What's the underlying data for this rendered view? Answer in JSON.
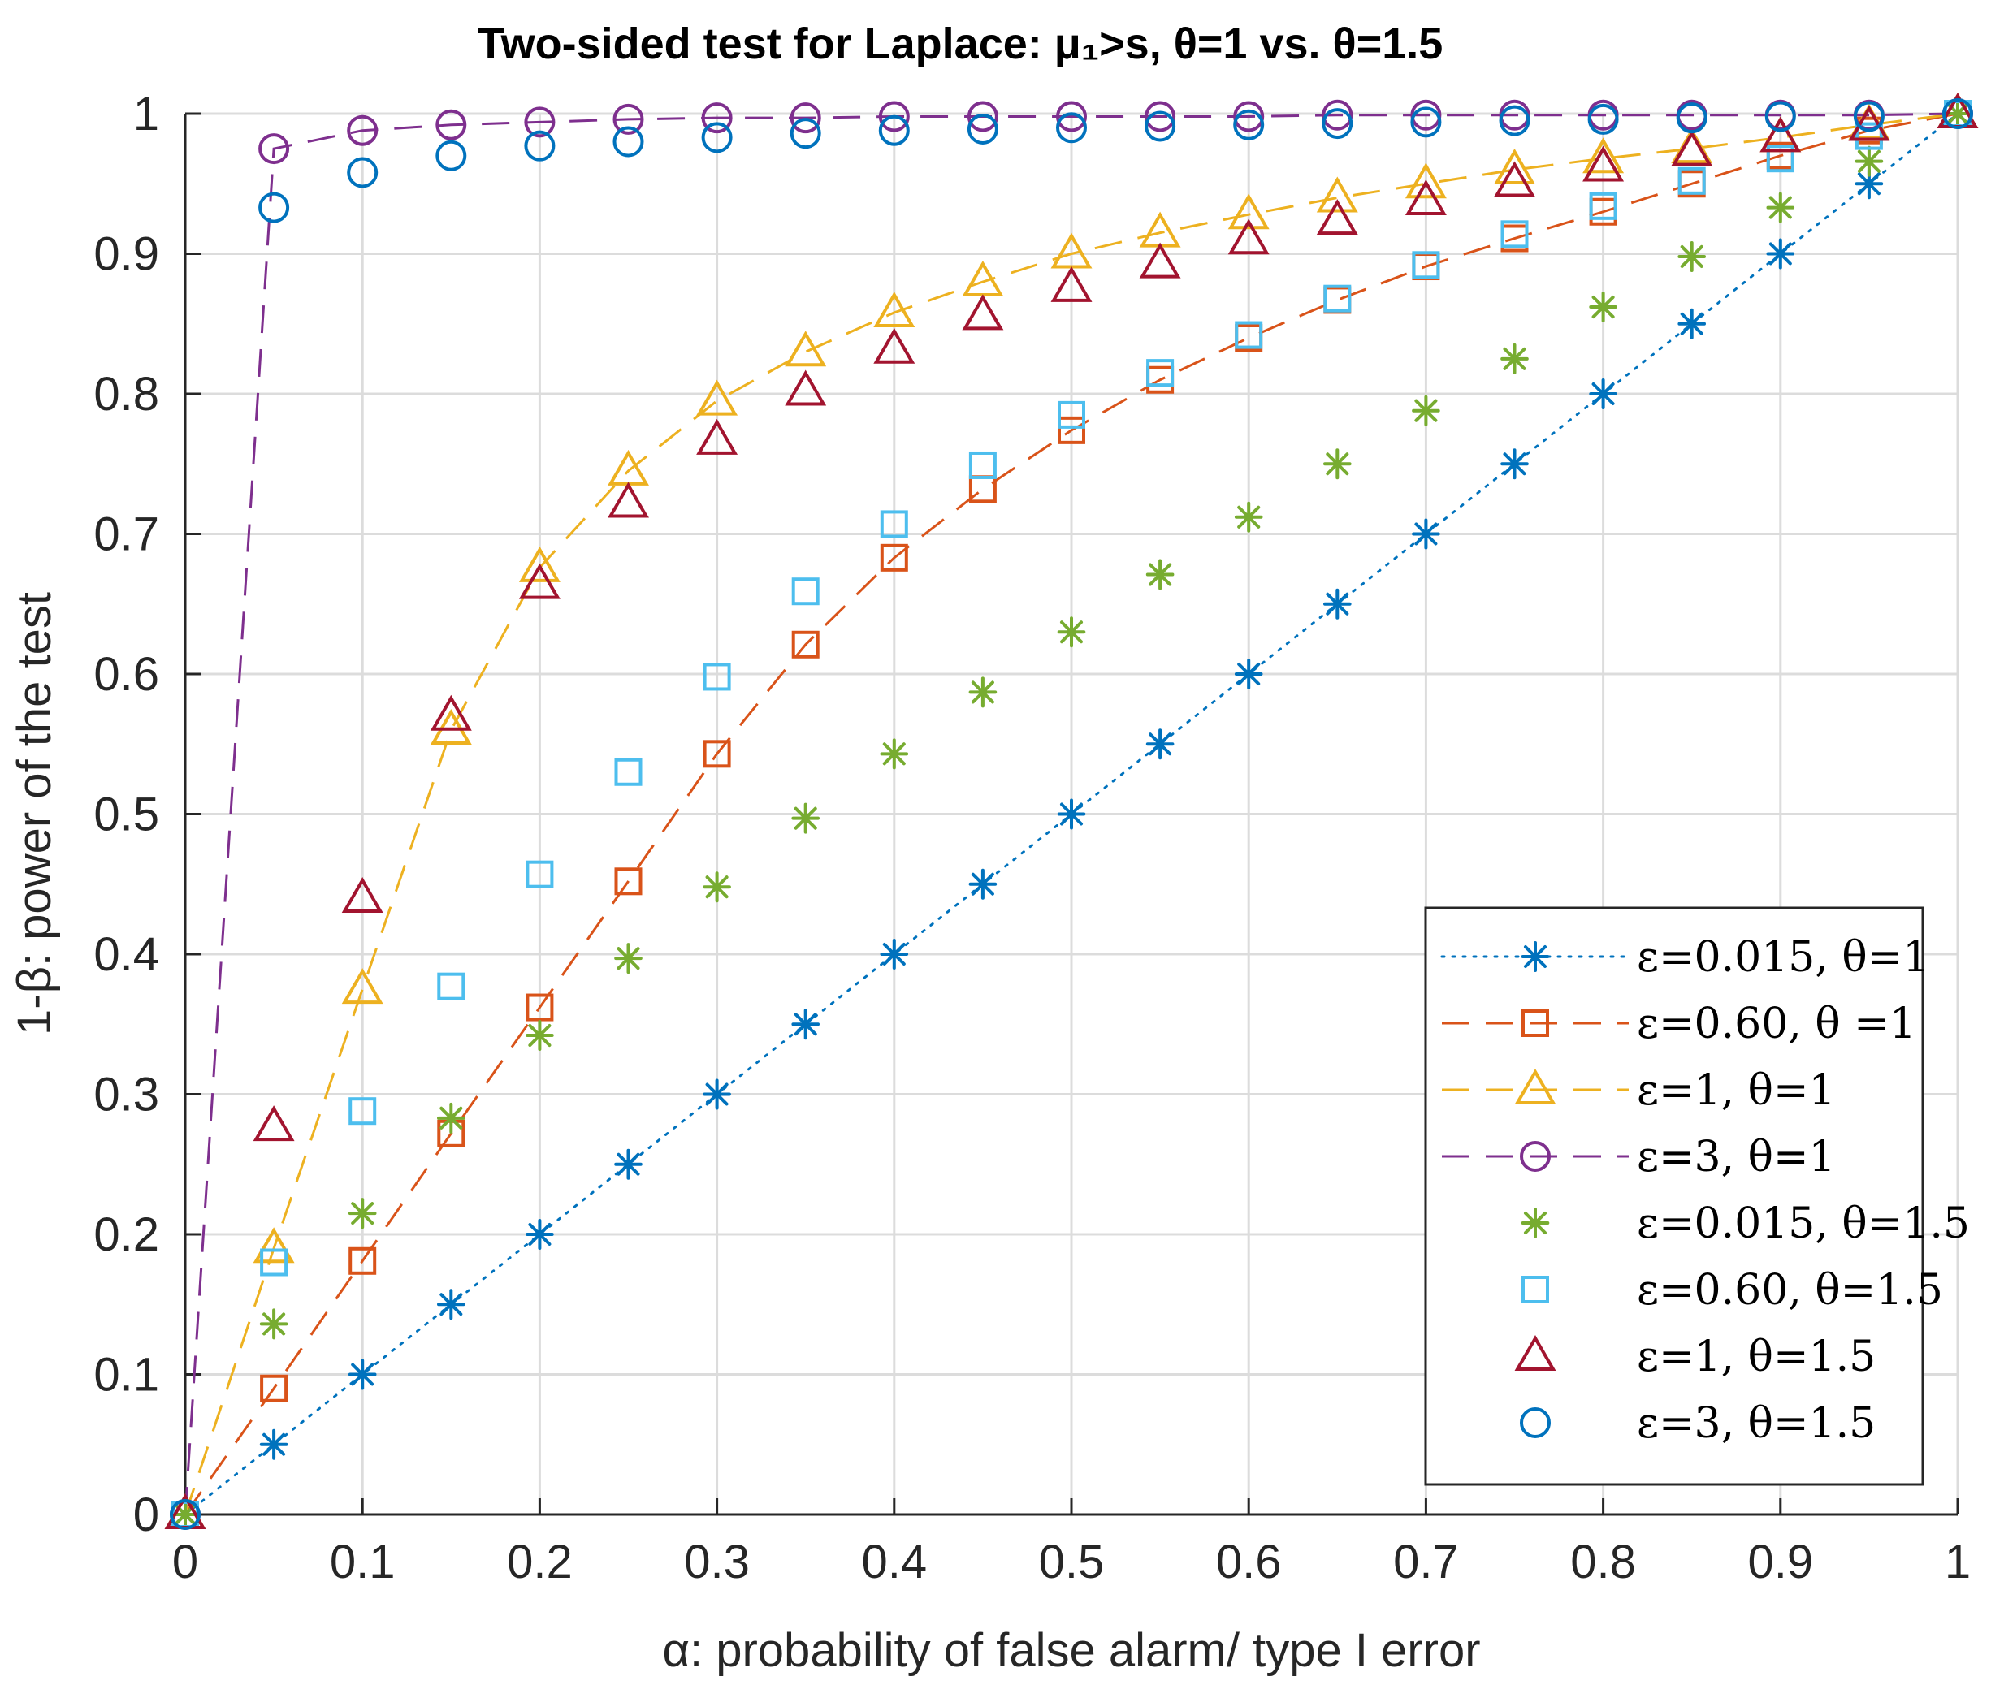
{
  "chart_data": {
    "type": "line",
    "title": "Two-sided test for Laplace: μ₁>s, θ=1 vs. θ=1.5",
    "xlabel": "α: probability of false alarm/ type I error",
    "ylabel": "1-β: power of the test",
    "xlim": [
      0,
      1
    ],
    "ylim": [
      0,
      1
    ],
    "xticks": [
      "0",
      "0.1",
      "0.2",
      "0.3",
      "0.4",
      "0.5",
      "0.6",
      "0.7",
      "0.8",
      "0.9",
      "1"
    ],
    "yticks": [
      "0",
      "0.1",
      "0.2",
      "0.3",
      "0.4",
      "0.5",
      "0.6",
      "0.7",
      "0.8",
      "0.9",
      "1"
    ],
    "grid": true,
    "legend_position": "bottom-right",
    "x": [
      0,
      0.05,
      0.1,
      0.15,
      0.2,
      0.25,
      0.3,
      0.35,
      0.4,
      0.45,
      0.5,
      0.55,
      0.6,
      0.65,
      0.7,
      0.75,
      0.8,
      0.85,
      0.9,
      0.95,
      1
    ],
    "series": [
      {
        "name": "ε=0.015, θ=1",
        "color": "#0072BD",
        "marker": "asterisk",
        "line": "dotted",
        "values": [
          0,
          0.05,
          0.1,
          0.15,
          0.2,
          0.25,
          0.3,
          0.35,
          0.4,
          0.45,
          0.5,
          0.55,
          0.6,
          0.65,
          0.7,
          0.75,
          0.8,
          0.85,
          0.9,
          0.95,
          1
        ]
      },
      {
        "name": "ε=0.60, θ =1",
        "color": "#D95319",
        "marker": "square",
        "line": "dashed",
        "values": [
          0,
          0.09,
          0.181,
          0.272,
          0.362,
          0.452,
          0.543,
          0.621,
          0.683,
          0.732,
          0.774,
          0.81,
          0.84,
          0.867,
          0.891,
          0.911,
          0.93,
          0.95,
          0.97,
          0.988,
          1
        ]
      },
      {
        "name": "ε=1, θ=1",
        "color": "#EDB120",
        "marker": "triangle",
        "line": "dashed",
        "values": [
          0,
          0.19,
          0.375,
          0.56,
          0.676,
          0.745,
          0.795,
          0.83,
          0.858,
          0.88,
          0.9,
          0.915,
          0.928,
          0.94,
          0.95,
          0.96,
          0.968,
          0.975,
          0.983,
          0.992,
          1
        ]
      },
      {
        "name": "ε=3, θ=1",
        "color": "#7E2F8E",
        "marker": "circle",
        "line": "dashed",
        "values": [
          0,
          0.975,
          0.988,
          0.992,
          0.994,
          0.996,
          0.997,
          0.997,
          0.998,
          0.998,
          0.998,
          0.998,
          0.998,
          0.999,
          0.999,
          0.999,
          0.999,
          0.999,
          0.999,
          0.999,
          1
        ]
      },
      {
        "name": "ε=0.015, θ=1.5",
        "color": "#77AC30",
        "marker": "asterisk",
        "line": "none",
        "values": [
          0,
          0.136,
          0.215,
          0.283,
          0.342,
          0.397,
          0.448,
          0.497,
          0.543,
          0.587,
          0.63,
          0.671,
          0.712,
          0.75,
          0.788,
          0.825,
          0.862,
          0.898,
          0.933,
          0.966,
          1
        ]
      },
      {
        "name": "ε=0.60, θ=1.5",
        "color": "#4DBEEE",
        "marker": "square",
        "line": "none",
        "values": [
          0,
          0.18,
          0.288,
          0.377,
          0.457,
          0.53,
          0.598,
          0.659,
          0.707,
          0.749,
          0.785,
          0.815,
          0.842,
          0.868,
          0.892,
          0.914,
          0.934,
          0.952,
          0.968,
          0.984,
          1
        ]
      },
      {
        "name": "ε=1, θ=1.5",
        "color": "#A2142F",
        "marker": "triangle",
        "line": "none",
        "values": [
          0,
          0.277,
          0.44,
          0.57,
          0.664,
          0.722,
          0.767,
          0.802,
          0.832,
          0.856,
          0.876,
          0.893,
          0.91,
          0.924,
          0.938,
          0.951,
          0.962,
          0.973,
          0.983,
          0.991,
          1
        ]
      },
      {
        "name": "ε=3, θ=1.5",
        "color": "#0072BD",
        "marker": "circle",
        "line": "none",
        "values": [
          0,
          0.933,
          0.958,
          0.97,
          0.977,
          0.98,
          0.983,
          0.986,
          0.988,
          0.989,
          0.99,
          0.991,
          0.992,
          0.993,
          0.994,
          0.995,
          0.996,
          0.997,
          0.998,
          0.998,
          1
        ]
      }
    ]
  }
}
